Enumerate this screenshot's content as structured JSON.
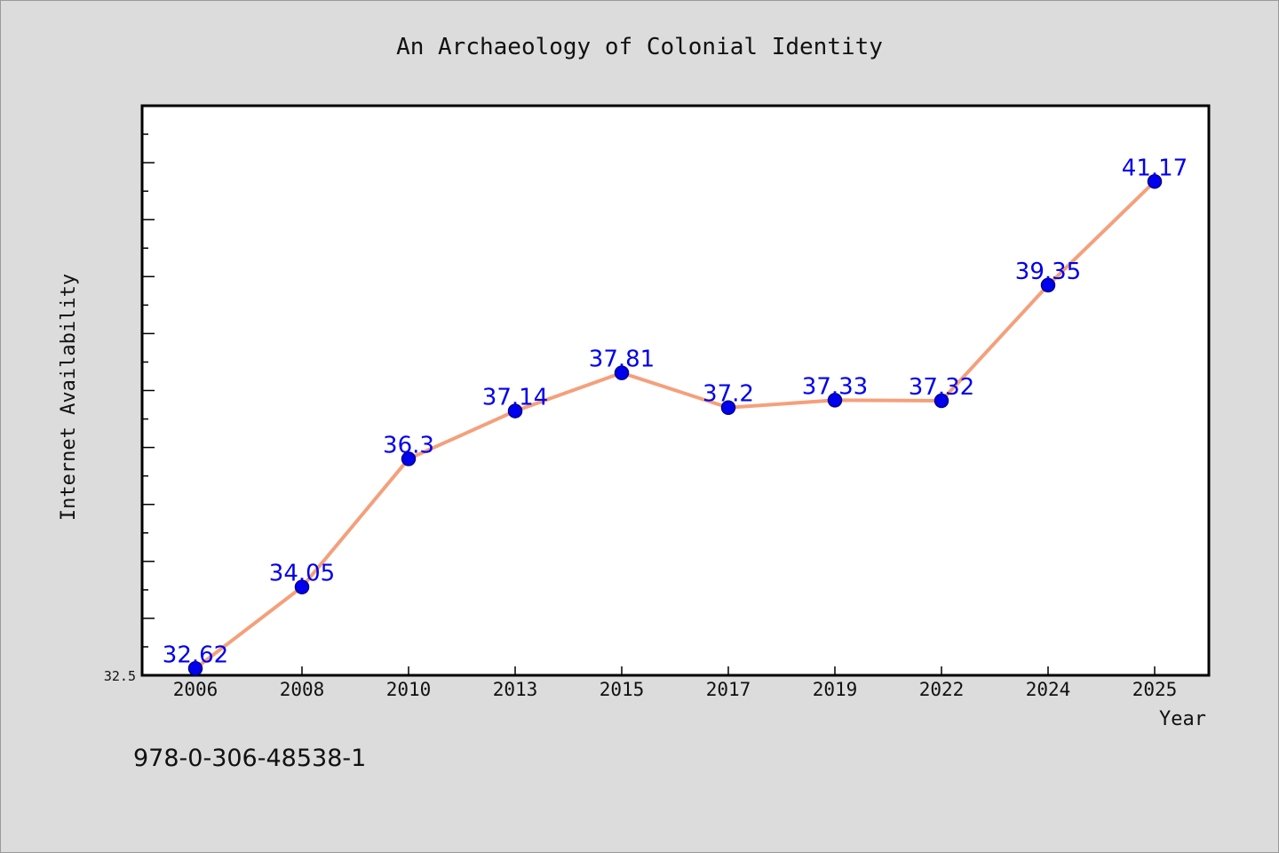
{
  "chart_data": {
    "type": "line",
    "title": "An Archaeology of Colonial Identity",
    "xlabel": "Year",
    "ylabel": "Internet Availability",
    "categories": [
      "2006",
      "2008",
      "2010",
      "2013",
      "2015",
      "2017",
      "2019",
      "2022",
      "2024",
      "2025"
    ],
    "series": [
      {
        "values": [
          32.62,
          34.05,
          36.3,
          37.14,
          37.81,
          37.2,
          37.33,
          37.32,
          39.35,
          41.17
        ]
      }
    ],
    "value_labels": [
      "32.62",
      "34.05",
      "36.3",
      "37.14",
      "37.81",
      "37.2",
      "37.33",
      "37.32",
      "39.35",
      "41.17"
    ],
    "ylim": [
      32.5,
      42.5
    ],
    "yticks_labeled": [
      "32.5"
    ],
    "grid": false,
    "legend": "none",
    "colors": {
      "line": "#f4a07c",
      "marker": "#0000ee",
      "marker_edge": "#00008b",
      "data_label": "#0000ee",
      "plot_bg": "#ffffff",
      "page_bg": "#dcdcdc"
    }
  },
  "footer": {
    "isbn": "978-0-306-48538-1"
  }
}
